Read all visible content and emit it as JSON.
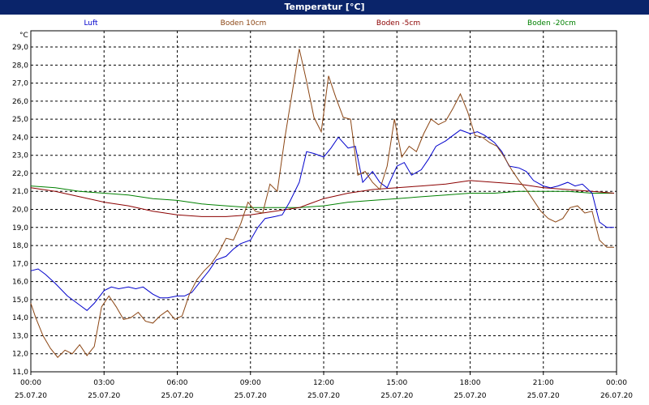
{
  "window": {
    "title": "Temperatur [°C]"
  },
  "colors": {
    "title_bar": "#0a246a",
    "luft": "#0000cc",
    "boden10": "#8b4513",
    "boden5": "#8b0000",
    "boden20": "#008000"
  },
  "chart_data": {
    "type": "line",
    "ylabel": "°C",
    "ylim": [
      11.0,
      29.9
    ],
    "y_ticks": [
      "11,0",
      "12,0",
      "13,0",
      "14,0",
      "15,0",
      "16,0",
      "17,0",
      "18,0",
      "19,0",
      "20,0",
      "21,0",
      "22,0",
      "23,0",
      "24,0",
      "25,0",
      "26,0",
      "27,0",
      "28,0",
      "29,0"
    ],
    "xlim": [
      0,
      24
    ],
    "x_ticks": [
      {
        "time": "00:00",
        "date": "25.07.20"
      },
      {
        "time": "03:00",
        "date": "25.07.20"
      },
      {
        "time": "06:00",
        "date": "25.07.20"
      },
      {
        "time": "09:00",
        "date": "25.07.20"
      },
      {
        "time": "12:00",
        "date": "25.07.20"
      },
      {
        "time": "15:00",
        "date": "25.07.20"
      },
      {
        "time": "18:00",
        "date": "25.07.20"
      },
      {
        "time": "21:00",
        "date": "25.07.20"
      },
      {
        "time": "00:00",
        "date": "26.07.20"
      }
    ],
    "grid": true,
    "series": [
      {
        "name": "Luft",
        "x": [
          0,
          0.3,
          0.6,
          1,
          1.5,
          2,
          2.3,
          2.6,
          3,
          3.3,
          3.6,
          4,
          4.3,
          4.6,
          5,
          5.3,
          5.6,
          6,
          6.3,
          6.6,
          7,
          7.3,
          7.6,
          8,
          8.3,
          8.6,
          9,
          9.3,
          9.6,
          10,
          10.3,
          10.6,
          11,
          11.3,
          11.6,
          12,
          12.3,
          12.6,
          13,
          13.3,
          13.6,
          14,
          14.3,
          14.6,
          15,
          15.3,
          15.6,
          16,
          16.3,
          16.6,
          17,
          17.3,
          17.6,
          18,
          18.3,
          18.6,
          19,
          19.3,
          19.6,
          20,
          20.3,
          20.6,
          21,
          21.3,
          21.6,
          22,
          22.3,
          22.6,
          23,
          23.3,
          23.6,
          23.9
        ],
        "y": [
          16.6,
          16.7,
          16.4,
          15.9,
          15.2,
          14.7,
          14.4,
          14.8,
          15.5,
          15.7,
          15.6,
          15.7,
          15.6,
          15.7,
          15.3,
          15.1,
          15.1,
          15.2,
          15.2,
          15.4,
          16.1,
          16.6,
          17.2,
          17.4,
          17.8,
          18.1,
          18.3,
          19.0,
          19.5,
          19.6,
          19.7,
          20.4,
          21.5,
          23.2,
          23.1,
          22.9,
          23.4,
          24.0,
          23.4,
          23.5,
          21.5,
          22.1,
          21.5,
          21.2,
          22.4,
          22.6,
          21.9,
          22.2,
          22.8,
          23.5,
          23.8,
          24.1,
          24.4,
          24.2,
          24.3,
          24.1,
          23.7,
          23.2,
          22.4,
          22.3,
          22.1,
          21.6,
          21.3,
          21.2,
          21.3,
          21.5,
          21.3,
          21.4,
          20.9,
          19.3,
          19.0,
          19.0
        ]
      },
      {
        "name": "Boden 10cm",
        "x": [
          0,
          0.2,
          0.5,
          0.8,
          1.1,
          1.4,
          1.7,
          2,
          2.3,
          2.6,
          2.9,
          3.2,
          3.5,
          3.8,
          4.1,
          4.4,
          4.7,
          5,
          5.3,
          5.6,
          5.9,
          6.2,
          6.5,
          6.8,
          7.1,
          7.4,
          7.7,
          8,
          8.3,
          8.6,
          8.9,
          9.2,
          9.5,
          9.8,
          10.1,
          10.4,
          10.7,
          11,
          11.3,
          11.6,
          11.9,
          12.2,
          12.5,
          12.8,
          13.1,
          13.4,
          13.7,
          14,
          14.3,
          14.6,
          14.9,
          15.2,
          15.5,
          15.8,
          16.1,
          16.4,
          16.7,
          17,
          17.3,
          17.6,
          17.9,
          18.2,
          18.5,
          18.8,
          19.1,
          19.4,
          19.7,
          20,
          20.3,
          20.6,
          20.9,
          21.2,
          21.5,
          21.8,
          22.1,
          22.4,
          22.7,
          23,
          23.3,
          23.6,
          23.9
        ],
        "y": [
          14.8,
          14.0,
          13.0,
          12.3,
          11.8,
          12.2,
          12.0,
          12.5,
          11.9,
          12.4,
          14.6,
          15.2,
          14.6,
          13.9,
          14.0,
          14.3,
          13.8,
          13.7,
          14.1,
          14.4,
          13.9,
          14.1,
          15.3,
          16.1,
          16.6,
          17.0,
          17.6,
          18.4,
          18.3,
          19.2,
          20.4,
          19.9,
          19.8,
          21.4,
          21.0,
          23.9,
          26.4,
          28.9,
          27.1,
          25.1,
          24.3,
          27.4,
          26.2,
          25.1,
          25.0,
          21.9,
          22.1,
          21.5,
          21.1,
          22.4,
          25.0,
          22.9,
          23.5,
          23.2,
          24.2,
          25.0,
          24.7,
          24.9,
          25.6,
          26.4,
          25.4,
          24.1,
          24.0,
          23.7,
          23.5,
          22.9,
          22.2,
          21.6,
          21.1,
          20.5,
          19.9,
          19.5,
          19.3,
          19.5,
          20.1,
          20.2,
          19.8,
          19.9,
          18.3,
          17.9,
          17.9
        ]
      },
      {
        "name": "Boden -5cm",
        "x": [
          0,
          1,
          2,
          3,
          4,
          5,
          6,
          7,
          8,
          9,
          10,
          11,
          12,
          13,
          14,
          15,
          16,
          17,
          18,
          19,
          20,
          21,
          22,
          23,
          23.9
        ],
        "y": [
          21.2,
          21.0,
          20.7,
          20.4,
          20.2,
          19.9,
          19.7,
          19.6,
          19.6,
          19.7,
          19.9,
          20.1,
          20.6,
          20.9,
          21.1,
          21.2,
          21.3,
          21.4,
          21.6,
          21.5,
          21.4,
          21.2,
          21.1,
          21.0,
          20.9
        ]
      },
      {
        "name": "Boden -20cm",
        "x": [
          0,
          1,
          2,
          3,
          4,
          5,
          6,
          7,
          8,
          9,
          10,
          11,
          12,
          13,
          14,
          15,
          16,
          17,
          18,
          19,
          20,
          21,
          22,
          23,
          23.9
        ],
        "y": [
          21.3,
          21.2,
          21.0,
          20.9,
          20.8,
          20.6,
          20.5,
          20.3,
          20.2,
          20.1,
          20.1,
          20.1,
          20.2,
          20.4,
          20.5,
          20.6,
          20.7,
          20.8,
          20.9,
          20.9,
          21.0,
          21.0,
          21.0,
          20.9,
          20.9
        ]
      }
    ]
  }
}
